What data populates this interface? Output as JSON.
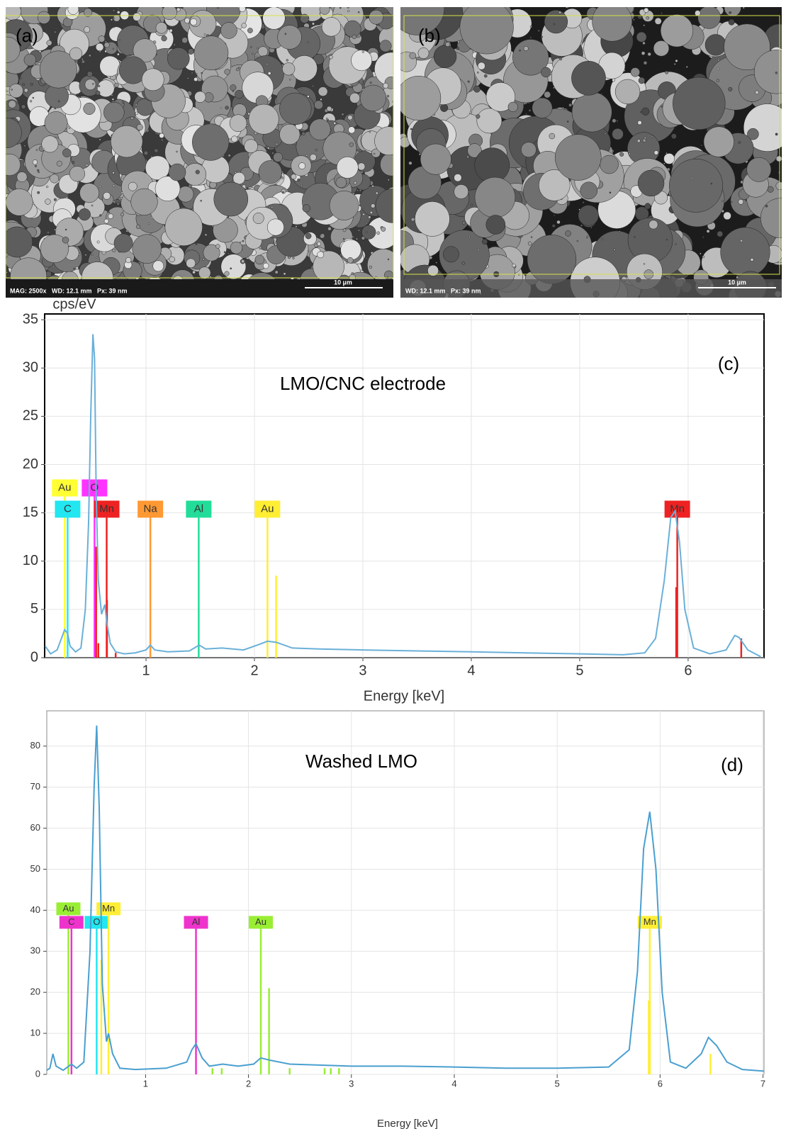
{
  "panels": [
    {
      "label": "(a)",
      "info": "MAG: 2500x   WD: 12.1 mm   Px: 39 nm",
      "scale_bar": "10 µm"
    },
    {
      "label": "(b)",
      "info": "WD: 12.1 mm   Px: 39 nm",
      "scale_bar": "10 µm"
    }
  ],
  "chart_data": [
    {
      "type": "line",
      "annotation": "LMO/CNC electrode",
      "panel_label": "(c)",
      "y_label": "cps/eV",
      "x_label": "Energy [keV]",
      "xlim": [
        0.065,
        6.7
      ],
      "ylim": [
        0,
        35.6
      ],
      "xticks": [
        1,
        2,
        3,
        4,
        5,
        6
      ],
      "yticks": [
        0,
        5,
        10,
        15,
        20,
        25,
        30,
        35
      ],
      "grid": true,
      "color": "#6ab0d8",
      "x": [
        0.07,
        0.12,
        0.18,
        0.22,
        0.25,
        0.277,
        0.3,
        0.35,
        0.4,
        0.44,
        0.47,
        0.49,
        0.51,
        0.525,
        0.54,
        0.56,
        0.59,
        0.62,
        0.64,
        0.67,
        0.72,
        0.8,
        0.9,
        1.0,
        1.04,
        1.08,
        1.2,
        1.4,
        1.49,
        1.55,
        1.7,
        1.9,
        2.05,
        2.12,
        2.2,
        2.35,
        2.6,
        3,
        3.5,
        4,
        4.5,
        5,
        5.4,
        5.6,
        5.7,
        5.78,
        5.84,
        5.88,
        5.92,
        5.97,
        6.05,
        6.2,
        6.35,
        6.43,
        6.47,
        6.55,
        6.67
      ],
      "values": [
        1.2,
        0.4,
        0.8,
        2,
        2.9,
        2.5,
        1.2,
        0.6,
        1,
        5,
        14,
        25,
        33.5,
        31,
        17,
        8,
        4.5,
        5.5,
        3.5,
        1.5,
        0.6,
        0.4,
        0.5,
        0.8,
        1.3,
        0.8,
        0.6,
        0.7,
        1.3,
        0.9,
        1,
        0.8,
        1.4,
        1.7,
        1.6,
        1,
        0.9,
        0.8,
        0.7,
        0.6,
        0.5,
        0.4,
        0.3,
        0.5,
        2,
        8,
        14.5,
        15.2,
        12,
        5,
        1,
        0.4,
        0.8,
        2.3,
        2.1,
        0.8,
        0.1
      ],
      "markers": [
        {
          "label": "Au",
          "energy": 0.25,
          "height": 16.7,
          "color": "#ffff33"
        },
        {
          "label": "C",
          "energy": 0.277,
          "height": 14.5,
          "color": "#22e6f0"
        },
        {
          "label": "O",
          "energy": 0.525,
          "height": 16.7,
          "color": "#ff33ff"
        },
        {
          "label": "Mn",
          "energy": 0.637,
          "height": 14.5,
          "color": "#ee2222"
        },
        {
          "label": "Na",
          "energy": 1.04,
          "height": 14.5,
          "color": "#ff9933"
        },
        {
          "label": "Al",
          "energy": 1.486,
          "height": 14.5,
          "color": "#22dd99"
        },
        {
          "label": "Au",
          "energy": 2.12,
          "height": 14.5,
          "color": "#ffee33"
        },
        {
          "label": "Mn",
          "energy": 5.9,
          "height": 14.5,
          "color": "#ee2222"
        },
        {
          "energy": 0.54,
          "height": 11.5,
          "color": "#ee2222"
        },
        {
          "energy": 0.56,
          "height": 1.5,
          "color": "#ee2222"
        },
        {
          "energy": 0.64,
          "height": 6,
          "color": "#ee2222"
        },
        {
          "energy": 0.72,
          "height": 0.5,
          "color": "#ee2222"
        },
        {
          "energy": 2.2,
          "height": 8.5,
          "color": "#ffee33"
        },
        {
          "energy": 5.89,
          "height": 7.3,
          "color": "#ee2222"
        },
        {
          "energy": 6.49,
          "height": 2,
          "color": "#ee2222"
        }
      ]
    },
    {
      "type": "line",
      "annotation": "Washed LMO",
      "panel_label": "(d)",
      "x_label": "Energy [keV]",
      "xlim": [
        0.04,
        7.01
      ],
      "ylim": [
        0,
        88.6
      ],
      "xticks": [
        1,
        2,
        3,
        4,
        5,
        6,
        7
      ],
      "yticks": [
        0,
        10,
        20,
        30,
        40,
        50,
        60,
        70,
        80
      ],
      "grid": true,
      "color": "#4a9fd0",
      "x": [
        0.04,
        0.07,
        0.1,
        0.13,
        0.2,
        0.28,
        0.33,
        0.4,
        0.46,
        0.5,
        0.525,
        0.55,
        0.58,
        0.62,
        0.64,
        0.68,
        0.75,
        0.9,
        1.2,
        1.4,
        1.45,
        1.49,
        1.55,
        1.62,
        1.75,
        1.9,
        2.05,
        2.12,
        2.2,
        2.4,
        3,
        3.5,
        4,
        4.5,
        5,
        5.5,
        5.7,
        5.78,
        5.84,
        5.9,
        5.96,
        6.02,
        6.1,
        6.25,
        6.4,
        6.47,
        6.55,
        6.65,
        6.8,
        7.01
      ],
      "values": [
        1,
        1.5,
        5,
        2,
        1,
        2.5,
        1.5,
        3,
        30,
        70,
        85,
        65,
        22,
        8,
        10,
        5,
        1.5,
        1.2,
        1.5,
        3,
        6,
        7.5,
        4,
        2,
        2.5,
        2,
        2.5,
        4,
        3.5,
        2.5,
        2,
        2,
        1.8,
        1.5,
        1.5,
        1.8,
        6,
        25,
        55,
        64,
        50,
        20,
        3,
        1.5,
        5,
        9,
        7,
        3,
        1.2,
        0.8
      ],
      "markers": [
        {
          "label": "Au",
          "energy": 0.25,
          "height": 38.8,
          "color": "#99ee33"
        },
        {
          "label": "C",
          "energy": 0.28,
          "height": 35.5,
          "color": "#ee33cc"
        },
        {
          "label": "O",
          "energy": 0.525,
          "height": 35.5,
          "color": "#22e6f0"
        },
        {
          "label": "Mn",
          "energy": 0.64,
          "height": 38.8,
          "color": "#ffee33"
        },
        {
          "label": "Al",
          "energy": 1.49,
          "height": 35.5,
          "color": "#ee33cc"
        },
        {
          "label": "Au",
          "energy": 2.12,
          "height": 35.5,
          "color": "#99ee33"
        },
        {
          "label": "Mn",
          "energy": 5.9,
          "height": 35.5,
          "color": "#ffee33"
        },
        {
          "energy": 0.57,
          "height": 28,
          "color": "#ffee33"
        },
        {
          "energy": 2.2,
          "height": 21,
          "color": "#99ee33"
        },
        {
          "energy": 5.89,
          "height": 18,
          "color": "#ffee33"
        },
        {
          "energy": 6.49,
          "height": 5,
          "color": "#ffee33"
        },
        {
          "energy": 1.65,
          "height": 1.5,
          "color": "#99ee33"
        },
        {
          "energy": 1.74,
          "height": 1.5,
          "color": "#99ee33"
        },
        {
          "energy": 2.4,
          "height": 1.5,
          "color": "#99ee33"
        },
        {
          "energy": 2.74,
          "height": 1.5,
          "color": "#99ee33"
        },
        {
          "energy": 2.8,
          "height": 1.5,
          "color": "#99ee33"
        },
        {
          "energy": 2.88,
          "height": 1.5,
          "color": "#99ee33"
        }
      ]
    }
  ]
}
